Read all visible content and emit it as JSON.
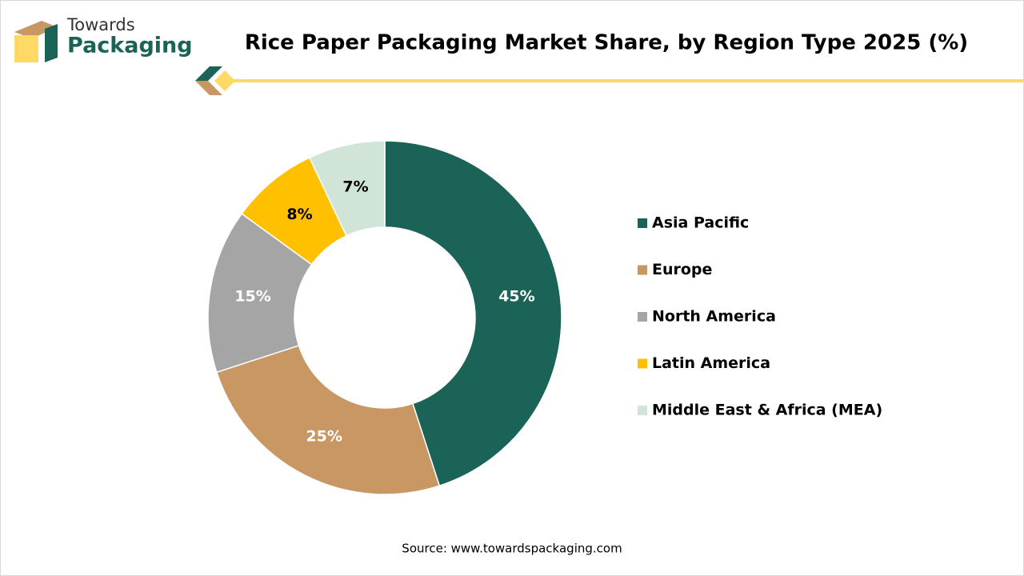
{
  "chart_data": {
    "type": "donut",
    "title": "Rice Paper Packaging Market Share, by Region Type 2025 (%)",
    "logo_text": [
      "Towards",
      "Packaging"
    ],
    "series": [
      {
        "name": "Region share",
        "categories": [
          "Asia Pacific",
          "Europe",
          "North America",
          "Latin America",
          "Middle East & Africa (MEA)"
        ],
        "values": [
          45,
          25,
          15,
          8,
          7
        ],
        "value_labels": [
          "45%",
          "25%",
          "15%",
          "8%",
          "7%"
        ],
        "colors": [
          "#1a6356",
          "#c99763",
          "#a5a5a5",
          "#ffc000",
          "#d0e4d8"
        ]
      }
    ],
    "legend": "right",
    "source": "Source: www.towardspackaging.com"
  }
}
